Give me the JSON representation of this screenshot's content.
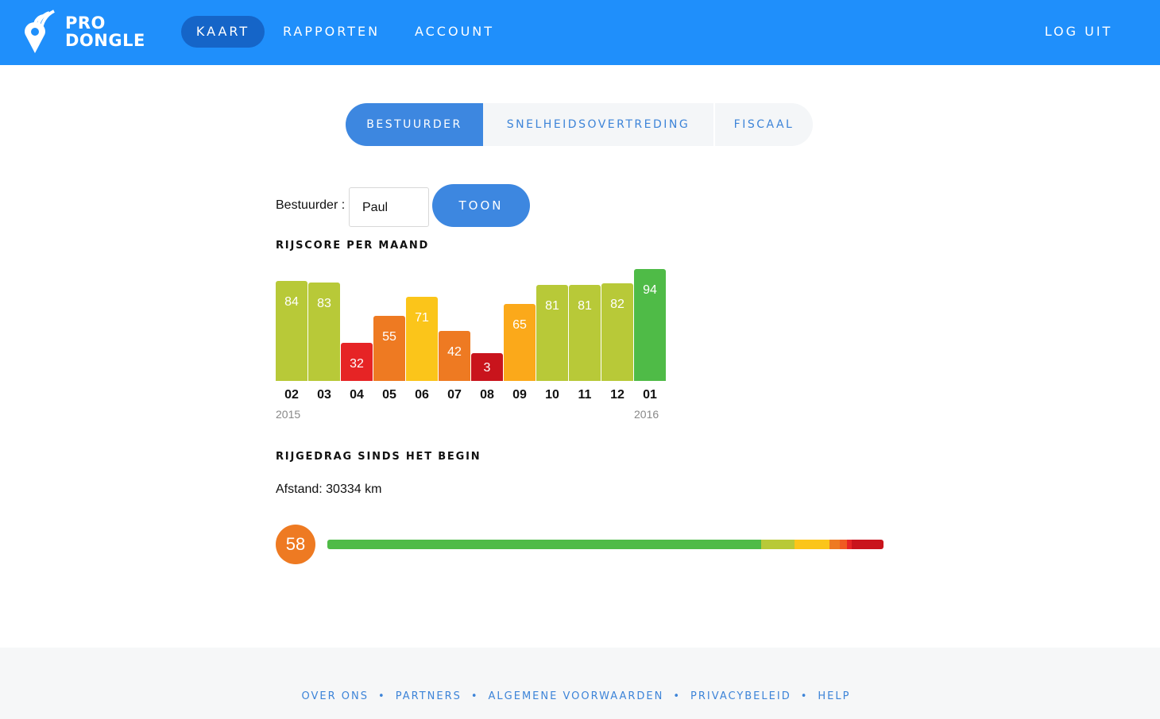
{
  "header": {
    "logo_line1": "PRO",
    "logo_line2": "DONGLE",
    "nav": [
      "KAART",
      "RAPPORTEN",
      "ACCOUNT"
    ],
    "logout": "LOG UIT",
    "colors": {
      "bar": "#1f8ffb",
      "active": "#1565c8"
    }
  },
  "tabs": [
    "BESTUURDER",
    "SNELHEIDSOVERTREDING",
    "FISCAAL"
  ],
  "form": {
    "label": "Bestuurder :",
    "value": "Paul",
    "button": "TOON"
  },
  "monthly": {
    "title": "RIJSCORE PER MAAND",
    "chart_data": {
      "type": "bar",
      "categories": [
        "02",
        "03",
        "04",
        "05",
        "06",
        "07",
        "08",
        "09",
        "10",
        "11",
        "12",
        "01"
      ],
      "values": [
        84,
        83,
        32,
        55,
        71,
        42,
        3,
        65,
        81,
        81,
        82,
        94
      ],
      "colors": [
        "#b8c938",
        "#b8c938",
        "#e62425",
        "#ee7a22",
        "#fbc51a",
        "#ee7a22",
        "#c9141c",
        "#fba91a",
        "#b8c938",
        "#b8c938",
        "#b8c938",
        "#4fbb47"
      ],
      "years": [
        "2015",
        "2016"
      ]
    }
  },
  "overall": {
    "title": "RIJGEDRAG SINDS HET BEGIN",
    "distance": "Afstand: 30334 km",
    "score": "58",
    "distribution": [
      {
        "color": "#4fbb47",
        "share": 0.78
      },
      {
        "color": "#b8c938",
        "share": 0.06
      },
      {
        "color": "#fbc51a",
        "share": 0.063
      },
      {
        "color": "#ee7a22",
        "share": 0.018
      },
      {
        "color": "#f05a22",
        "share": 0.013
      },
      {
        "color": "#e62425",
        "share": 0.009
      },
      {
        "color": "#c9141c",
        "share": 0.057
      }
    ]
  },
  "footer": [
    "OVER ONS",
    "PARTNERS",
    "ALGEMENE VOORWAARDEN",
    "PRIVACYBELEID",
    "HELP"
  ]
}
